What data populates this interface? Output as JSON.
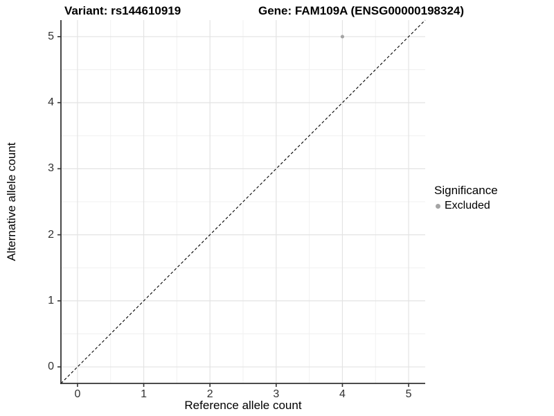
{
  "titles": {
    "left": "Variant: rs144610919",
    "right": "Gene: FAM109A (ENSG00000198324)"
  },
  "axes": {
    "x": {
      "label": "Reference allele count",
      "ticks": [
        0,
        1,
        2,
        3,
        4,
        5
      ],
      "minor_ticks": [
        0.5,
        1.5,
        2.5,
        3.5,
        4.5
      ]
    },
    "y": {
      "label": "Alternative allele count",
      "ticks": [
        0,
        1,
        2,
        3,
        4,
        5
      ],
      "minor_ticks": [
        0.5,
        1.5,
        2.5,
        3.5,
        4.5
      ]
    }
  },
  "legend": {
    "title": "Significance",
    "entries": [
      {
        "label": "Excluded",
        "color": "#a4a4a4"
      }
    ]
  },
  "chart_data": {
    "type": "scatter",
    "title": "Variant: rs144610919 — Gene: FAM109A (ENSG00000198324)",
    "xlabel": "Reference allele count",
    "ylabel": "Alternative allele count",
    "xlim": [
      -0.25,
      5.25
    ],
    "ylim": [
      -0.25,
      5.25
    ],
    "grid": "on",
    "legend_position": "right",
    "series": [
      {
        "name": "Excluded",
        "color": "#a4a4a4",
        "points": [
          {
            "x": 4,
            "y": 5
          }
        ]
      }
    ],
    "reference_line": {
      "style": "dashed",
      "color": "#000000",
      "from": {
        "x": -0.25,
        "y": -0.25
      },
      "to": {
        "x": 5.25,
        "y": 5.25
      }
    }
  },
  "colors": {
    "background": "#ffffff",
    "grid_major": "#e3e3e3",
    "grid_minor": "#f0f0f0",
    "axis_line": "#333333",
    "tick_mark": "#333333",
    "tick_text": "#303030",
    "point": "#a4a4a4",
    "reference_line": "#000000"
  }
}
